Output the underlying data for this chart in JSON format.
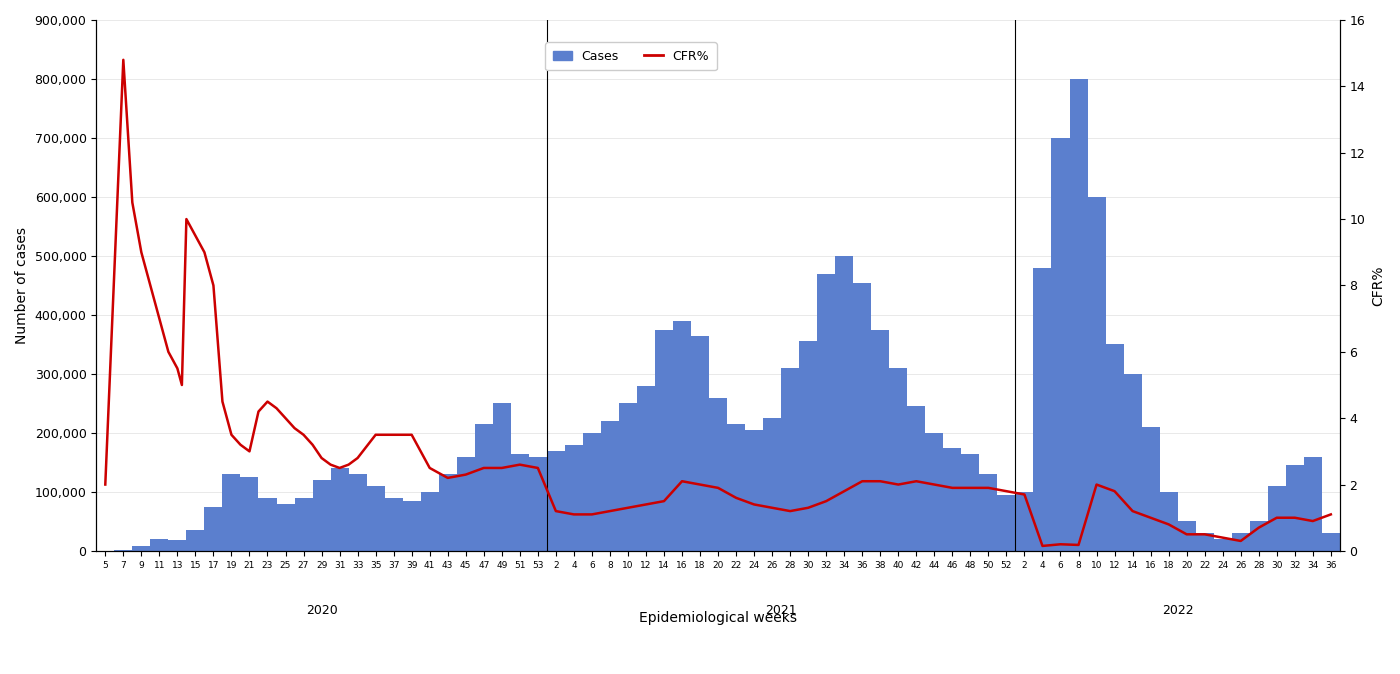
{
  "title": "",
  "xlabel": "Epidemiological weeks",
  "ylabel_left": "Number of cases",
  "ylabel_right": "CFR%",
  "background_color": "#ffffff",
  "bar_color": "#5b7fce",
  "line_color": "#cc0000",
  "ylim_left": [
    0,
    900000
  ],
  "ylim_right": [
    0,
    16
  ],
  "yticks_left": [
    0,
    100000,
    200000,
    300000,
    400000,
    500000,
    600000,
    700000,
    800000,
    900000
  ],
  "ytick_labels_left": [
    "0",
    "100,000",
    "200,000",
    "300,000",
    "400,000",
    "500,000",
    "600,000",
    "700,000",
    "800,000",
    "900,000"
  ],
  "yticks_right": [
    0,
    2,
    4,
    6,
    8,
    10,
    12,
    14,
    16
  ],
  "year_labels": [
    "2020",
    "2021",
    "2022"
  ],
  "week_labels_2020": [
    "5",
    "7",
    "9",
    "11",
    "13",
    "15",
    "17",
    "19",
    "21",
    "23",
    "25",
    "27",
    "29",
    "31",
    "33",
    "35",
    "37",
    "39",
    "41",
    "43",
    "45",
    "47",
    "49",
    "51",
    "53"
  ],
  "week_labels_2021": [
    "2",
    "4",
    "6",
    "8",
    "10",
    "12",
    "14",
    "16",
    "18",
    "20",
    "22",
    "24",
    "26",
    "28",
    "30",
    "32",
    "34",
    "36",
    "38",
    "40",
    "42",
    "44",
    "46",
    "48",
    "50",
    "52"
  ],
  "week_labels_2022": [
    "2",
    "4",
    "6",
    "8",
    "10",
    "12",
    "14",
    "16",
    "18",
    "20",
    "22",
    "24",
    "26",
    "28",
    "30",
    "32",
    "34",
    "36"
  ],
  "cases_2020": [
    300,
    1500,
    8000,
    20000,
    18000,
    35000,
    75000,
    130000,
    125000,
    90000,
    80000,
    90000,
    120000,
    140000,
    130000,
    110000,
    90000,
    85000,
    100000,
    130000,
    160000,
    215000,
    250000,
    165000,
    160000
  ],
  "cases_2021": [
    170000,
    180000,
    200000,
    220000,
    250000,
    280000,
    375000,
    390000,
    365000,
    260000,
    215000,
    205000,
    225000,
    310000,
    355000,
    470000,
    500000,
    455000,
    375000,
    310000,
    245000,
    200000,
    175000,
    165000,
    130000,
    95000
  ],
  "cases_2022": [
    100000,
    480000,
    700000,
    800000,
    600000,
    350000,
    300000,
    210000,
    100000,
    50000,
    30000,
    20000,
    30000,
    50000,
    110000,
    145000,
    160000,
    30000
  ],
  "cfr_x_2020": [
    0,
    1,
    1.5,
    2,
    2.5,
    3,
    3.5,
    4,
    4.25,
    4.5,
    5,
    5.5,
    6,
    6.5,
    7,
    7.5,
    8,
    8.5,
    9,
    9.5,
    10,
    10.5,
    11,
    11.5,
    12,
    12.5,
    13,
    13.5,
    14,
    15,
    16,
    17,
    18,
    19,
    20,
    21,
    22,
    23,
    24
  ],
  "cfr_y_2020": [
    2.0,
    14.8,
    10.5,
    9.0,
    8.0,
    7.0,
    6.0,
    5.5,
    5.0,
    10.0,
    9.5,
    9.0,
    8.0,
    4.5,
    3.5,
    3.2,
    3.0,
    4.2,
    4.5,
    4.3,
    4.0,
    3.7,
    3.5,
    3.2,
    2.8,
    2.6,
    2.5,
    2.6,
    2.8,
    3.5,
    3.5,
    3.5,
    2.5,
    2.2,
    2.3,
    2.5,
    2.5,
    2.6,
    2.5
  ],
  "cfr_x_2021": [
    25,
    26,
    27,
    28,
    29,
    30,
    31,
    32,
    33,
    34,
    35,
    36,
    37,
    38,
    39,
    40,
    41,
    42,
    43,
    44,
    45,
    46,
    47,
    48,
    49,
    50
  ],
  "cfr_y_2021": [
    1.2,
    1.1,
    1.1,
    1.2,
    1.3,
    1.4,
    1.5,
    2.1,
    2.0,
    1.9,
    1.6,
    1.4,
    1.3,
    1.2,
    1.3,
    1.5,
    1.8,
    2.1,
    2.1,
    2.0,
    2.1,
    2.0,
    1.9,
    1.9,
    1.9,
    1.8
  ],
  "cfr_x_2022": [
    51,
    52,
    53,
    54,
    55,
    56,
    57,
    58,
    59,
    60,
    61,
    62,
    63,
    64,
    65,
    66,
    67,
    68
  ],
  "cfr_y_2022": [
    1.7,
    0.15,
    0.2,
    0.18,
    2.0,
    1.8,
    1.2,
    1.0,
    0.8,
    0.5,
    0.5,
    0.4,
    0.3,
    0.7,
    1.0,
    1.0,
    0.9,
    1.1
  ]
}
